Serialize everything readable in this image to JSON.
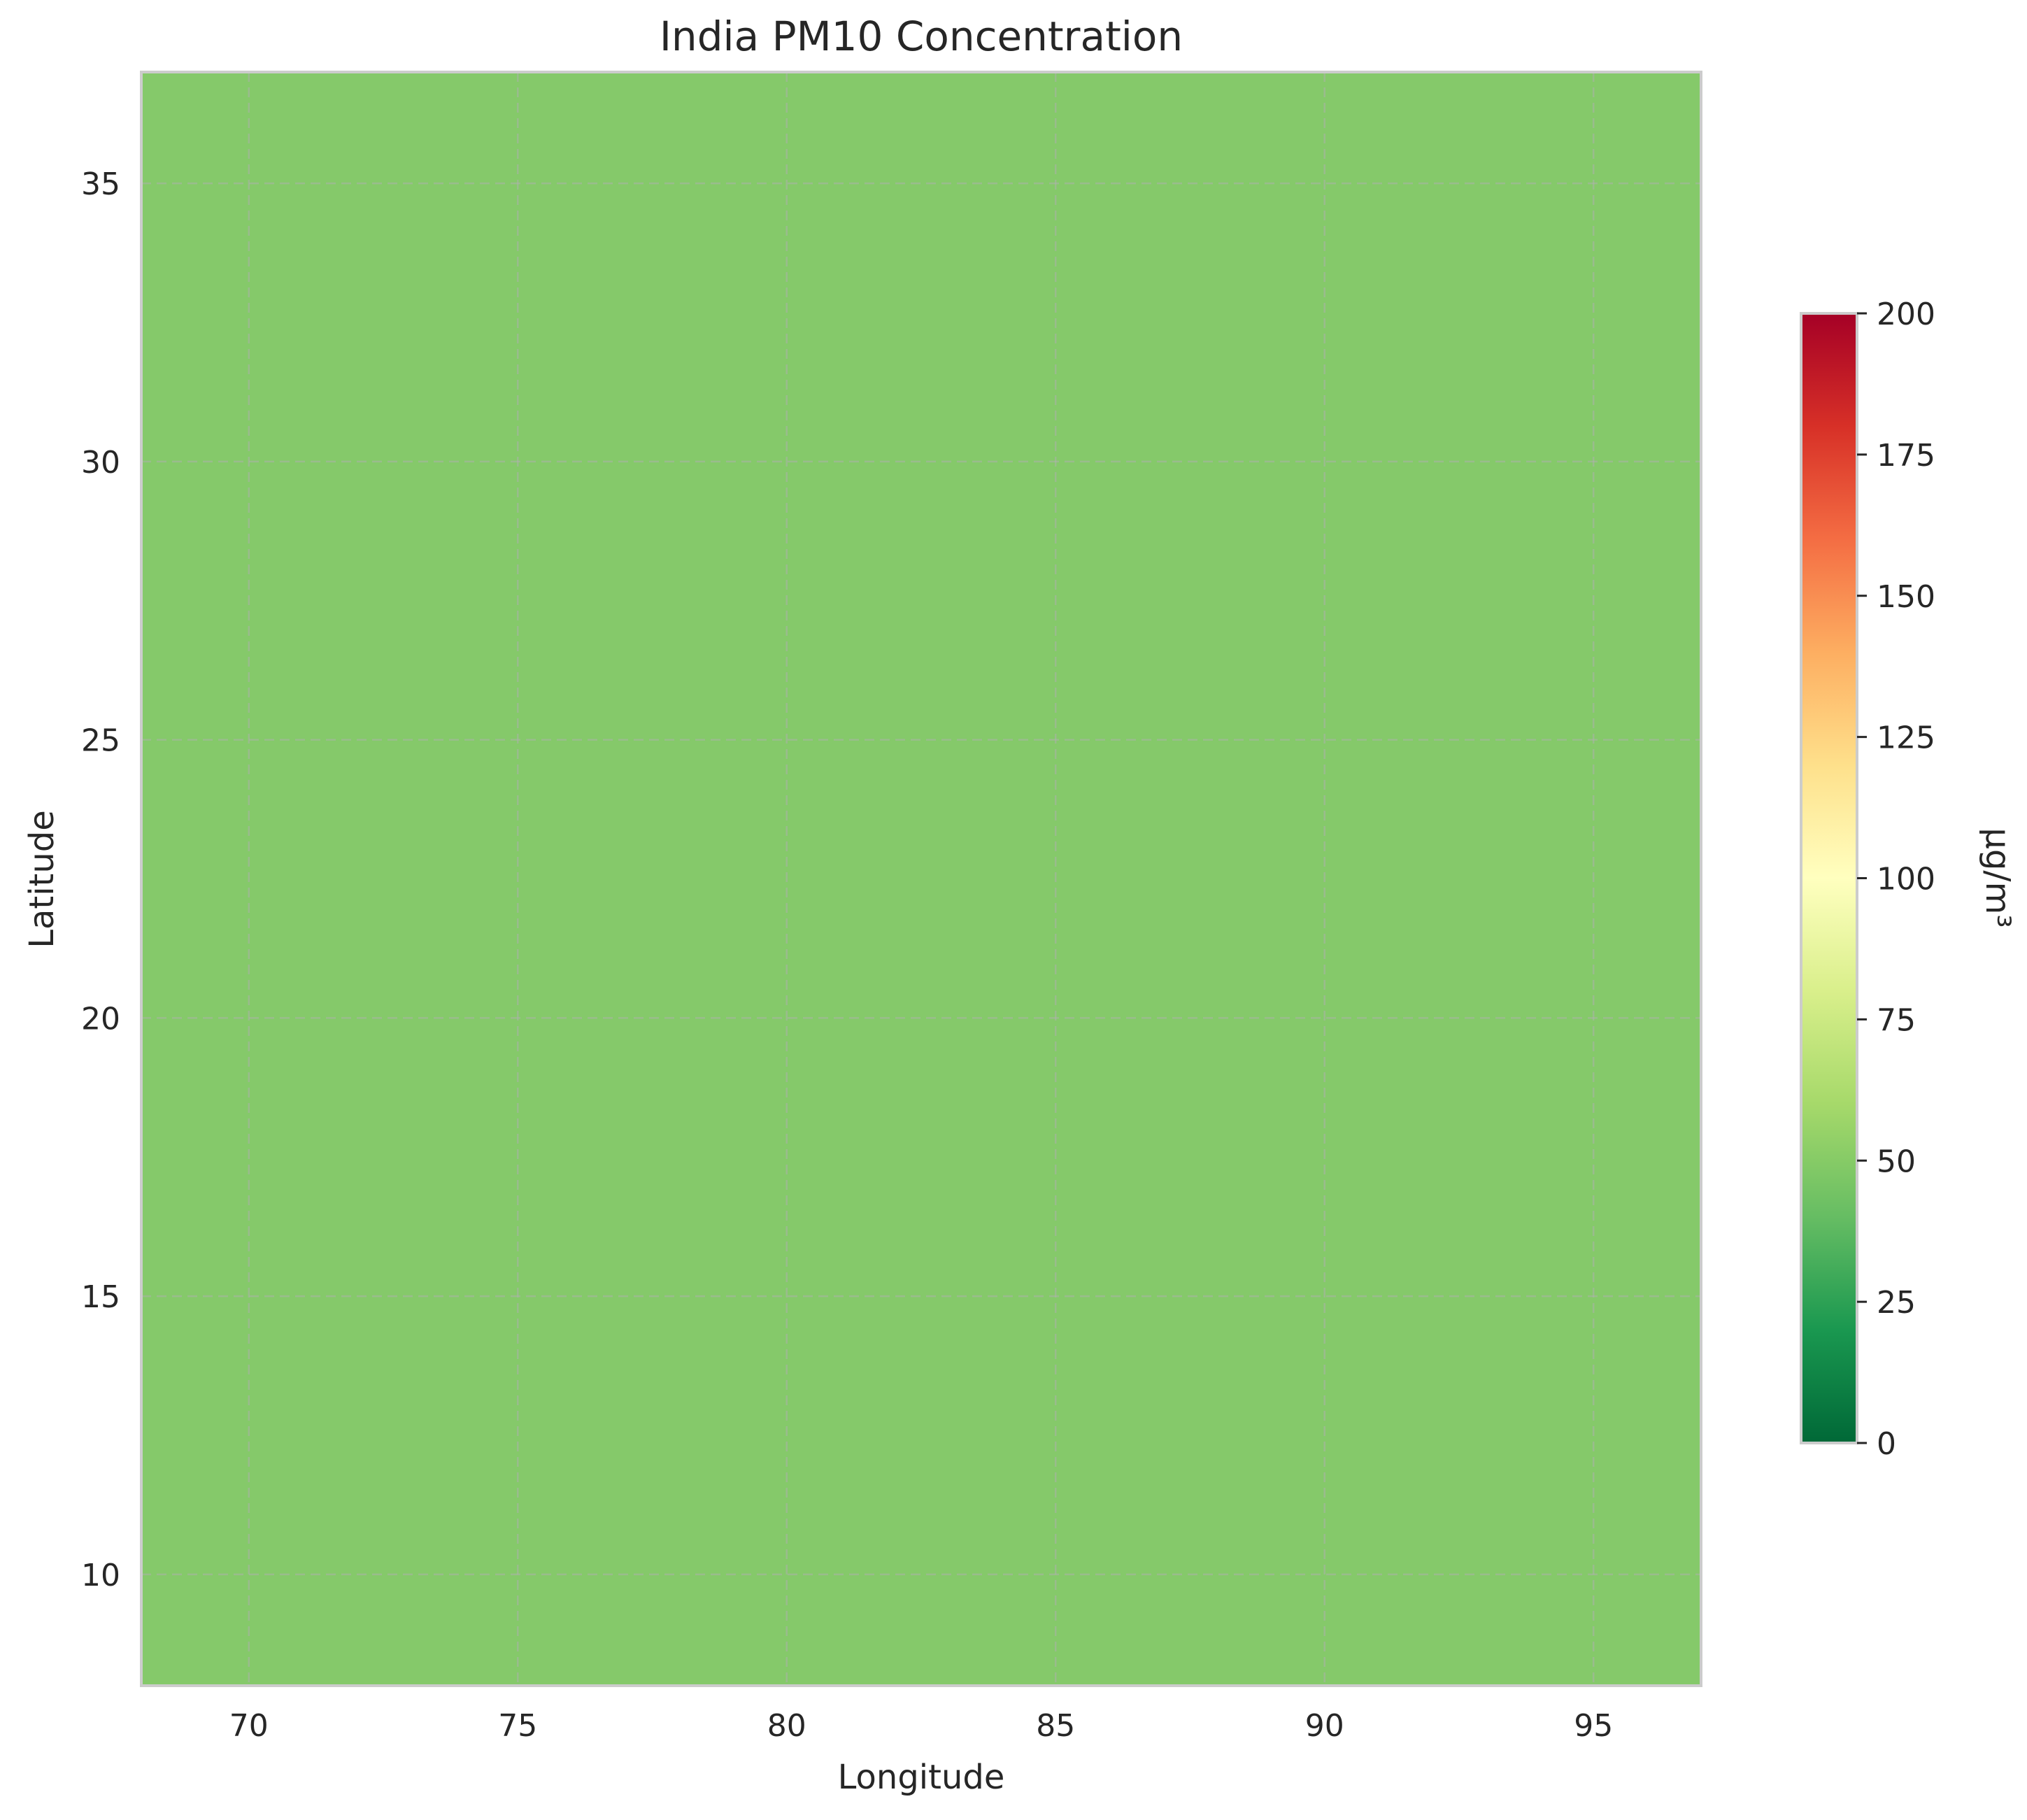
{
  "chart_data": {
    "type": "heatmap",
    "title": "India PM10 Concentration",
    "xlabel": "Longitude",
    "ylabel": "Latitude",
    "xlim": [
      68,
      97
    ],
    "ylim": [
      8,
      37
    ],
    "xticks": [
      70,
      75,
      80,
      85,
      90,
      95
    ],
    "yticks": [
      10,
      15,
      20,
      25,
      30,
      35
    ],
    "grid": true,
    "values": [
      [
        55
      ]
    ],
    "value_note": "uniform field",
    "colorbar": {
      "label": "µg/m³",
      "range": [
        0,
        200
      ],
      "ticks": [
        0,
        25,
        50,
        75,
        100,
        125,
        150,
        175,
        200
      ],
      "colormap": "RdYlGn_r",
      "stops": [
        "#006837",
        "#1a9850",
        "#66bd63",
        "#a6d96a",
        "#d9ef8b",
        "#ffffbf",
        "#fee08b",
        "#fdae61",
        "#f46d43",
        "#d73027",
        "#a50026"
      ]
    },
    "field_color": "#85c96a"
  }
}
